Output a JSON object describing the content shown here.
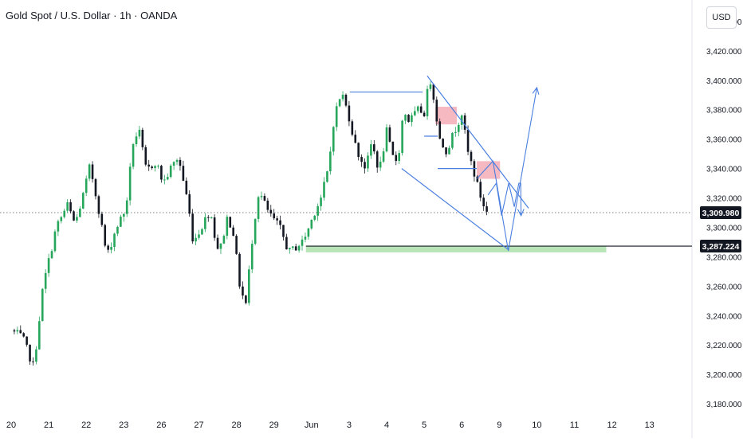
{
  "header": {
    "title": "Gold Spot / U.S. Dollar · 1h · OANDA",
    "currency": "USD"
  },
  "colors": {
    "up": "#26a65b",
    "down": "#131722",
    "line": "#4a7fe0",
    "zone": "#f08a98",
    "support": "#7ccf7c",
    "axis_text": "#131722"
  },
  "chart_data": {
    "type": "candlestick",
    "title": "Gold Spot / U.S. Dollar · 1h · OANDA",
    "ylim": [
      3173,
      3447
    ],
    "y_ticks": [
      "3,440.000",
      "3,420.000",
      "3,400.000",
      "3,380.000",
      "3,360.000",
      "3,340.000",
      "3,320.000",
      "3,300.000",
      "3,280.000",
      "3,260.000",
      "3,240.000",
      "3,220.000",
      "3,200.000",
      "3,180.000"
    ],
    "x_ticks": [
      "20",
      "21",
      "22",
      "23",
      "26",
      "27",
      "28",
      "29",
      "Jun",
      "3",
      "4",
      "5",
      "6",
      "9",
      "10",
      "11",
      "12",
      "13"
    ],
    "price_labels": {
      "current": "3,309.980",
      "level": "3,287.224"
    },
    "current_price": 3309.98,
    "support_level": 3287.224,
    "keypoints": [
      [
        0,
        3230
      ],
      [
        0.3,
        3225
      ],
      [
        0.6,
        3205
      ],
      [
        0.85,
        3260
      ],
      [
        1.2,
        3300
      ],
      [
        1.5,
        3315
      ],
      [
        1.7,
        3302
      ],
      [
        1.9,
        3320
      ],
      [
        2.1,
        3342
      ],
      [
        2.35,
        3310
      ],
      [
        2.55,
        3280
      ],
      [
        2.8,
        3300
      ],
      [
        3.05,
        3312
      ],
      [
        3.25,
        3358
      ],
      [
        3.4,
        3366
      ],
      [
        3.6,
        3338
      ],
      [
        3.85,
        3345
      ],
      [
        4.05,
        3330
      ],
      [
        4.25,
        3340
      ],
      [
        4.45,
        3348
      ],
      [
        4.7,
        3318
      ],
      [
        4.85,
        3290
      ],
      [
        5.1,
        3302
      ],
      [
        5.3,
        3312
      ],
      [
        5.45,
        3290
      ],
      [
        5.55,
        3283
      ],
      [
        5.75,
        3306
      ],
      [
        5.9,
        3300
      ],
      [
        6.1,
        3258
      ],
      [
        6.25,
        3248
      ],
      [
        6.45,
        3300
      ],
      [
        6.6,
        3325
      ],
      [
        6.85,
        3310
      ],
      [
        7.15,
        3300
      ],
      [
        7.4,
        3283
      ],
      [
        7.75,
        3290
      ],
      [
        7.9,
        3298
      ],
      [
        8.1,
        3312
      ],
      [
        8.25,
        3320
      ],
      [
        8.45,
        3340
      ],
      [
        8.6,
        3375
      ],
      [
        8.8,
        3392
      ],
      [
        9.0,
        3375
      ],
      [
        9.2,
        3352
      ],
      [
        9.45,
        3340
      ],
      [
        9.6,
        3358
      ],
      [
        9.8,
        3338
      ],
      [
        10.0,
        3365
      ],
      [
        10.15,
        3348
      ],
      [
        10.3,
        3345
      ],
      [
        10.45,
        3380
      ],
      [
        10.6,
        3372
      ],
      [
        10.85,
        3380
      ],
      [
        11.0,
        3378
      ],
      [
        11.15,
        3402
      ],
      [
        11.3,
        3382
      ],
      [
        11.4,
        3360
      ],
      [
        11.6,
        3352
      ],
      [
        11.8,
        3365
      ],
      [
        12.0,
        3378
      ],
      [
        12.15,
        3352
      ],
      [
        12.3,
        3340
      ],
      [
        12.45,
        3325
      ],
      [
        12.65,
        3310
      ]
    ],
    "annotations": {
      "wedge_upper": [
        [
          11.08,
          3403
        ],
        [
          13.78,
          3313
        ]
      ],
      "wedge_lower": [
        [
          10.4,
          3340
        ],
        [
          13.23,
          3285
        ]
      ],
      "top_line": [
        [
          9.02,
          3392
        ],
        [
          10.96,
          3392
        ]
      ],
      "step_lines": [
        [
          [
            11.0,
            3362
          ],
          [
            11.36,
            3362
          ]
        ],
        [
          [
            11.36,
            3340
          ],
          [
            12.4,
            3340
          ]
        ]
      ],
      "supply_zones": [
        [
          [
            11.3,
            11.87
          ],
          [
            3370,
            3382
          ]
        ],
        [
          [
            12.4,
            13.02
          ],
          [
            3333,
            3345
          ]
        ]
      ],
      "demand_zone": [
        [
          7.85,
          15.85
        ],
        [
          3283,
          3287
        ]
      ],
      "projection_small": [
        [
          12.7,
          3322
        ],
        [
          12.92,
          3330
        ],
        [
          13.06,
          3308
        ],
        [
          13.25,
          3330
        ],
        [
          13.4,
          3314
        ],
        [
          13.52,
          3330
        ],
        [
          13.57,
          3330
        ],
        [
          13.58,
          3308
        ]
      ],
      "projection_main": [
        [
          12.4,
          3333
        ],
        [
          12.83,
          3345
        ],
        [
          13.24,
          3284
        ],
        [
          14.0,
          3395
        ]
      ],
      "horizontal_line": 3287.224
    }
  }
}
